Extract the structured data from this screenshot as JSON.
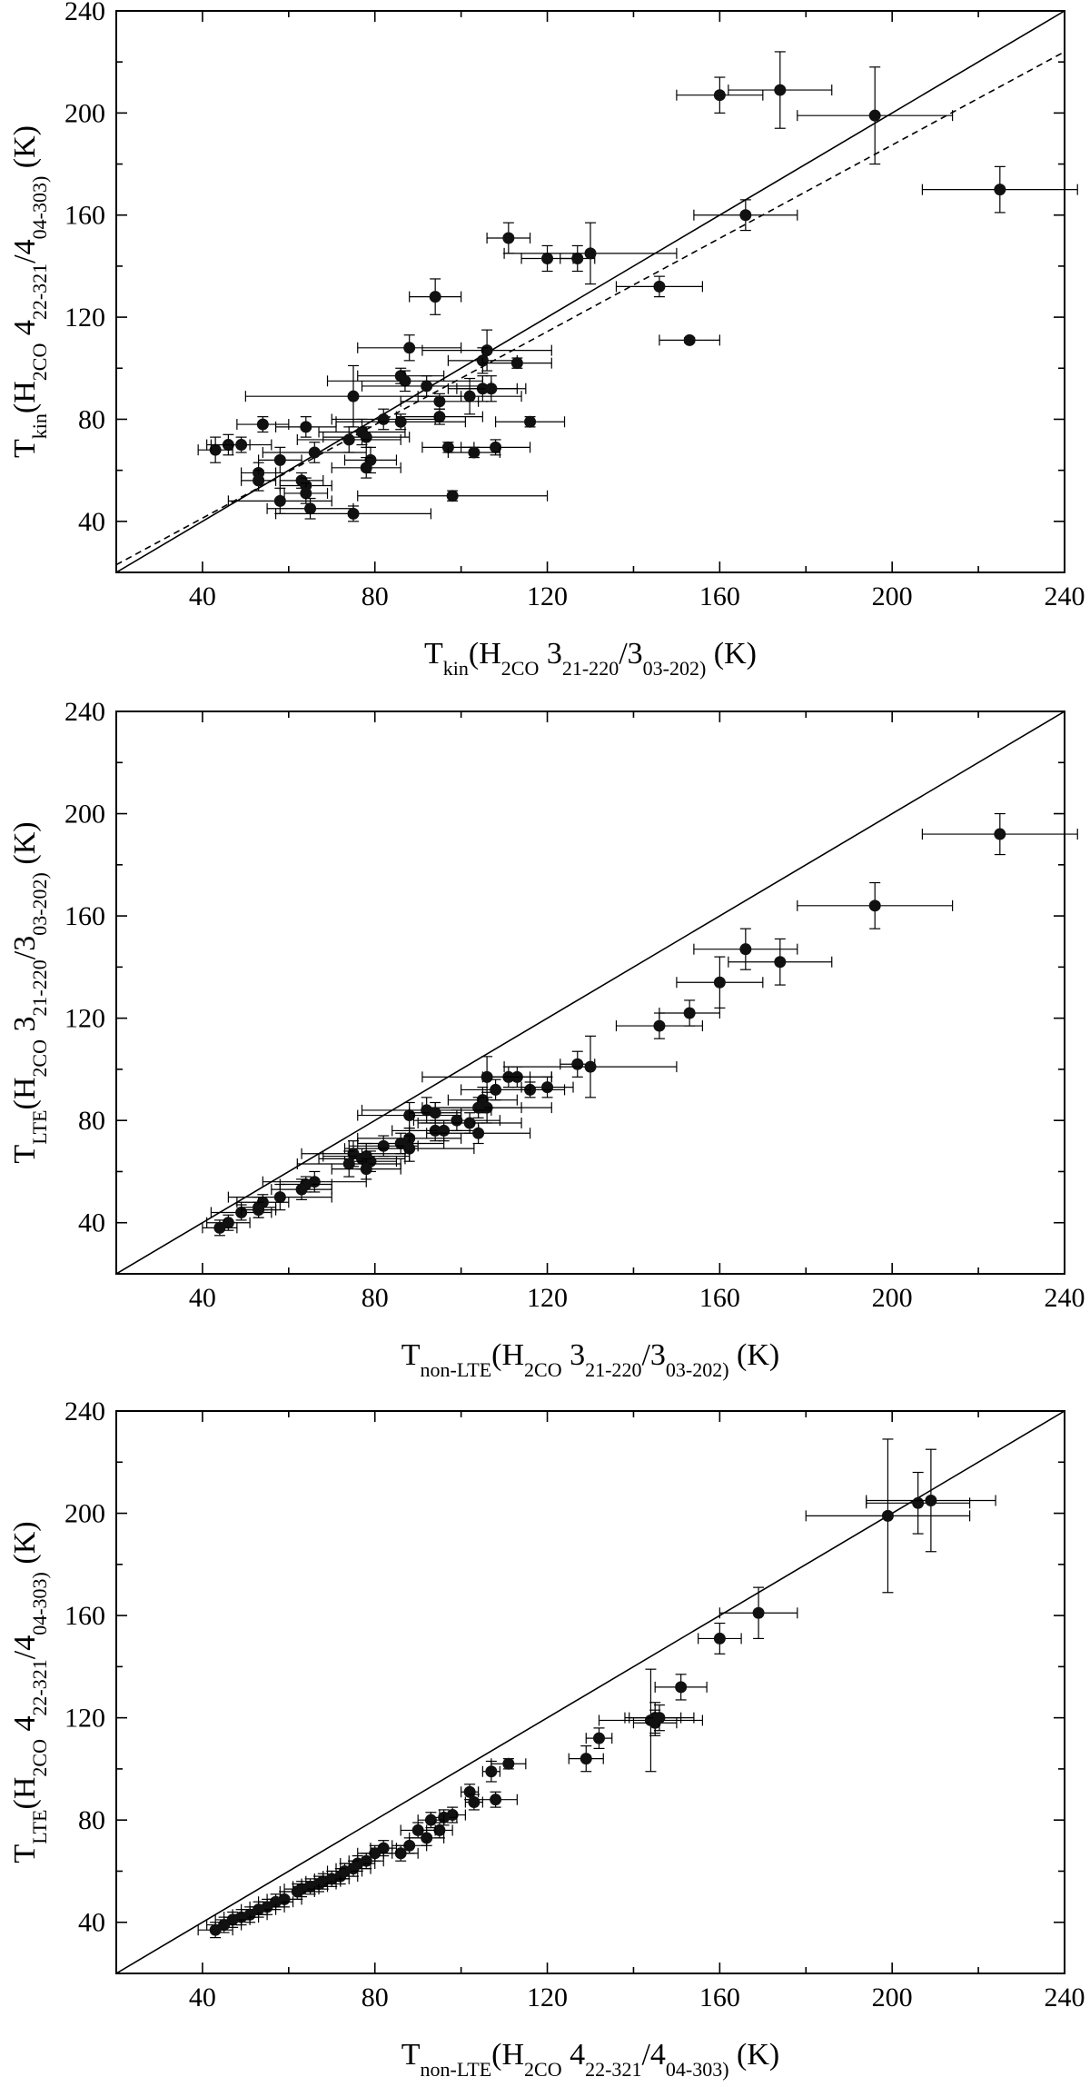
{
  "chart_data": [
    {
      "type": "scatter",
      "xlabel": "T_kin(H_2CO 3_21-2_20/3_03-2_02) (K)",
      "ylabel": "T_kin(H_2CO 4_22-3_21/4_04-3_03) (K)",
      "xlim": [
        20,
        240
      ],
      "ylim": [
        20,
        240
      ],
      "xticks": [
        "40",
        "80",
        "120",
        "160",
        "200",
        "240"
      ],
      "yticks": [
        "40",
        "80",
        "120",
        "160",
        "200",
        "240"
      ],
      "grid": false,
      "lines": [
        {
          "style": "solid",
          "x": [
            20,
            240
          ],
          "y": [
            20,
            240
          ]
        },
        {
          "style": "dashed",
          "x": [
            20,
            240
          ],
          "y": [
            23,
            224
          ]
        }
      ],
      "points": [
        {
          "x": 160,
          "y": 207,
          "xerr": 10,
          "yerr": 7
        },
        {
          "x": 174,
          "y": 209,
          "xerr": 12,
          "yerr": 15
        },
        {
          "x": 196,
          "y": 199,
          "xerr": 18,
          "yerr": 19
        },
        {
          "x": 225,
          "y": 170,
          "xerr": 18,
          "yerr": 9
        },
        {
          "x": 166,
          "y": 160,
          "xerr": 12,
          "yerr": 6
        },
        {
          "x": 111,
          "y": 151,
          "xerr": 5,
          "yerr": 6
        },
        {
          "x": 120,
          "y": 143,
          "xerr": 6,
          "yerr": 5
        },
        {
          "x": 127,
          "y": 143,
          "xerr": 4,
          "yerr": 5
        },
        {
          "x": 130,
          "y": 145,
          "xerr": 20,
          "yerr": 12
        },
        {
          "x": 146,
          "y": 132,
          "xerr": 10,
          "yerr": 4
        },
        {
          "x": 94,
          "y": 128,
          "xerr": 6,
          "yerr": 7
        },
        {
          "x": 153,
          "y": 111,
          "xerr": 7,
          "yerr": 1
        },
        {
          "x": 88,
          "y": 108,
          "xerr": 12,
          "yerr": 5
        },
        {
          "x": 106,
          "y": 107,
          "xerr": 15,
          "yerr": 8
        },
        {
          "x": 105,
          "y": 103,
          "xerr": 8,
          "yerr": 5
        },
        {
          "x": 113,
          "y": 102,
          "xerr": 8,
          "yerr": 2
        },
        {
          "x": 86,
          "y": 97,
          "xerr": 10,
          "yerr": 3
        },
        {
          "x": 87,
          "y": 95,
          "xerr": 18,
          "yerr": 4
        },
        {
          "x": 92,
          "y": 93,
          "xerr": 15,
          "yerr": 4
        },
        {
          "x": 105,
          "y": 92,
          "xerr": 8,
          "yerr": 5
        },
        {
          "x": 107,
          "y": 92,
          "xerr": 8,
          "yerr": 5
        },
        {
          "x": 102,
          "y": 89,
          "xerr": 12,
          "yerr": 7
        },
        {
          "x": 75,
          "y": 89,
          "xerr": 25,
          "yerr": 12
        },
        {
          "x": 95,
          "y": 87,
          "xerr": 9,
          "yerr": 3
        },
        {
          "x": 95,
          "y": 81,
          "xerr": 10,
          "yerr": 3
        },
        {
          "x": 82,
          "y": 80,
          "xerr": 12,
          "yerr": 4
        },
        {
          "x": 86,
          "y": 79,
          "xerr": 15,
          "yerr": 3
        },
        {
          "x": 54,
          "y": 78,
          "xerr": 6,
          "yerr": 3
        },
        {
          "x": 64,
          "y": 77,
          "xerr": 7,
          "yerr": 4
        },
        {
          "x": 116,
          "y": 79,
          "xerr": 8,
          "yerr": 2
        },
        {
          "x": 77,
          "y": 75,
          "xerr": 10,
          "yerr": 5
        },
        {
          "x": 78,
          "y": 73,
          "xerr": 10,
          "yerr": 4
        },
        {
          "x": 74,
          "y": 72,
          "xerr": 12,
          "yerr": 5
        },
        {
          "x": 46,
          "y": 70,
          "xerr": 5,
          "yerr": 4
        },
        {
          "x": 43,
          "y": 68,
          "xerr": 4,
          "yerr": 5
        },
        {
          "x": 49,
          "y": 70,
          "xerr": 7,
          "yerr": 3
        },
        {
          "x": 97,
          "y": 69,
          "xerr": 6,
          "yerr": 2
        },
        {
          "x": 108,
          "y": 69,
          "xerr": 8,
          "yerr": 3
        },
        {
          "x": 103,
          "y": 67,
          "xerr": 6,
          "yerr": 2
        },
        {
          "x": 66,
          "y": 67,
          "xerr": 12,
          "yerr": 4
        },
        {
          "x": 58,
          "y": 64,
          "xerr": 5,
          "yerr": 5
        },
        {
          "x": 79,
          "y": 64,
          "xerr": 6,
          "yerr": 5
        },
        {
          "x": 78,
          "y": 61,
          "xerr": 8,
          "yerr": 4
        },
        {
          "x": 53,
          "y": 59,
          "xerr": 4,
          "yerr": 4
        },
        {
          "x": 63,
          "y": 56,
          "xerr": 5,
          "yerr": 3
        },
        {
          "x": 53,
          "y": 56,
          "xerr": 4,
          "yerr": 4
        },
        {
          "x": 64,
          "y": 54,
          "xerr": 6,
          "yerr": 3
        },
        {
          "x": 64,
          "y": 51,
          "xerr": 5,
          "yerr": 4
        },
        {
          "x": 98,
          "y": 50,
          "xerr": 22,
          "yerr": 2
        },
        {
          "x": 58,
          "y": 48,
          "xerr": 12,
          "yerr": 5
        },
        {
          "x": 65,
          "y": 45,
          "xerr": 10,
          "yerr": 4
        },
        {
          "x": 75,
          "y": 43,
          "xerr": 18,
          "yerr": 3
        }
      ]
    },
    {
      "type": "scatter",
      "xlabel": "T_non-LTE(H_2CO 3_21-2_20/3_03-2_02) (K)",
      "ylabel": "T_LTE(H_2CO 3_21-2_20/3_03-2_02) (K)",
      "xlim": [
        20,
        240
      ],
      "ylim": [
        20,
        240
      ],
      "xticks": [
        "40",
        "80",
        "120",
        "160",
        "200",
        "240"
      ],
      "yticks": [
        "40",
        "80",
        "120",
        "160",
        "200",
        "240"
      ],
      "grid": false,
      "lines": [
        {
          "style": "solid",
          "x": [
            20,
            240
          ],
          "y": [
            20,
            240
          ]
        }
      ],
      "points": [
        {
          "x": 225,
          "y": 192,
          "xerr": 18,
          "yerr": 8
        },
        {
          "x": 196,
          "y": 164,
          "xerr": 18,
          "yerr": 9
        },
        {
          "x": 166,
          "y": 147,
          "xerr": 12,
          "yerr": 8
        },
        {
          "x": 174,
          "y": 142,
          "xerr": 12,
          "yerr": 9
        },
        {
          "x": 160,
          "y": 134,
          "xerr": 10,
          "yerr": 10
        },
        {
          "x": 153,
          "y": 122,
          "xerr": 7,
          "yerr": 5
        },
        {
          "x": 146,
          "y": 117,
          "xerr": 10,
          "yerr": 5
        },
        {
          "x": 127,
          "y": 102,
          "xerr": 4,
          "yerr": 5
        },
        {
          "x": 130,
          "y": 101,
          "xerr": 20,
          "yerr": 12
        },
        {
          "x": 111,
          "y": 97,
          "xerr": 5,
          "yerr": 4
        },
        {
          "x": 113,
          "y": 97,
          "xerr": 8,
          "yerr": 4
        },
        {
          "x": 106,
          "y": 97,
          "xerr": 15,
          "yerr": 8
        },
        {
          "x": 120,
          "y": 93,
          "xerr": 6,
          "yerr": 4
        },
        {
          "x": 116,
          "y": 92,
          "xerr": 8,
          "yerr": 3
        },
        {
          "x": 108,
          "y": 92,
          "xerr": 8,
          "yerr": 4
        },
        {
          "x": 105,
          "y": 88,
          "xerr": 8,
          "yerr": 5
        },
        {
          "x": 106,
          "y": 85,
          "xerr": 15,
          "yerr": 6
        },
        {
          "x": 104,
          "y": 85,
          "xerr": 10,
          "yerr": 4
        },
        {
          "x": 92,
          "y": 84,
          "xerr": 15,
          "yerr": 5
        },
        {
          "x": 88,
          "y": 82,
          "xerr": 12,
          "yerr": 5
        },
        {
          "x": 94,
          "y": 83,
          "xerr": 6,
          "yerr": 4
        },
        {
          "x": 99,
          "y": 80,
          "xerr": 10,
          "yerr": 4
        },
        {
          "x": 102,
          "y": 79,
          "xerr": 12,
          "yerr": 4
        },
        {
          "x": 94,
          "y": 76,
          "xerr": 10,
          "yerr": 4
        },
        {
          "x": 96,
          "y": 76,
          "xerr": 8,
          "yerr": 4
        },
        {
          "x": 104,
          "y": 75,
          "xerr": 12,
          "yerr": 4
        },
        {
          "x": 88,
          "y": 73,
          "xerr": 12,
          "yerr": 4
        },
        {
          "x": 86,
          "y": 71,
          "xerr": 10,
          "yerr": 4
        },
        {
          "x": 82,
          "y": 70,
          "xerr": 8,
          "yerr": 4
        },
        {
          "x": 88,
          "y": 69,
          "xerr": 15,
          "yerr": 5
        },
        {
          "x": 75,
          "y": 67,
          "xerr": 12,
          "yerr": 5
        },
        {
          "x": 78,
          "y": 66,
          "xerr": 10,
          "yerr": 5
        },
        {
          "x": 77,
          "y": 65,
          "xerr": 10,
          "yerr": 4
        },
        {
          "x": 79,
          "y": 64,
          "xerr": 6,
          "yerr": 4
        },
        {
          "x": 74,
          "y": 63,
          "xerr": 12,
          "yerr": 5
        },
        {
          "x": 78,
          "y": 61,
          "xerr": 8,
          "yerr": 4
        },
        {
          "x": 66,
          "y": 56,
          "xerr": 12,
          "yerr": 4
        },
        {
          "x": 64,
          "y": 55,
          "xerr": 6,
          "yerr": 3
        },
        {
          "x": 63,
          "y": 53,
          "xerr": 7,
          "yerr": 4
        },
        {
          "x": 58,
          "y": 50,
          "xerr": 12,
          "yerr": 5
        },
        {
          "x": 54,
          "y": 48,
          "xerr": 6,
          "yerr": 3
        },
        {
          "x": 53,
          "y": 46,
          "xerr": 4,
          "yerr": 4
        },
        {
          "x": 49,
          "y": 44,
          "xerr": 7,
          "yerr": 3
        },
        {
          "x": 53,
          "y": 45,
          "xerr": 4,
          "yerr": 3
        },
        {
          "x": 46,
          "y": 40,
          "xerr": 5,
          "yerr": 3
        },
        {
          "x": 44,
          "y": 38,
          "xerr": 4,
          "yerr": 3
        }
      ]
    },
    {
      "type": "scatter",
      "xlabel": "T_non-LTE(H_2CO 4_22-3_21/4_04-3_03) (K)",
      "ylabel": "T_LTE(H_2CO 4_22-3_21/4_04-3_03) (K)",
      "xlim": [
        20,
        240
      ],
      "ylim": [
        20,
        240
      ],
      "xticks": [
        "40",
        "80",
        "120",
        "160",
        "200",
        "240"
      ],
      "yticks": [
        "40",
        "80",
        "120",
        "160",
        "200",
        "240"
      ],
      "grid": false,
      "lines": [
        {
          "style": "solid",
          "x": [
            20,
            240
          ],
          "y": [
            20,
            240
          ]
        }
      ],
      "points": [
        {
          "x": 199,
          "y": 199,
          "xerr": 19,
          "yerr": 30
        },
        {
          "x": 206,
          "y": 204,
          "xerr": 12,
          "yerr": 12
        },
        {
          "x": 209,
          "y": 205,
          "xerr": 15,
          "yerr": 20
        },
        {
          "x": 169,
          "y": 161,
          "xerr": 9,
          "yerr": 10
        },
        {
          "x": 160,
          "y": 151,
          "xerr": 5,
          "yerr": 6
        },
        {
          "x": 151,
          "y": 132,
          "xerr": 6,
          "yerr": 5
        },
        {
          "x": 145,
          "y": 120,
          "xerr": 6,
          "yerr": 6
        },
        {
          "x": 144,
          "y": 119,
          "xerr": 12,
          "yerr": 20
        },
        {
          "x": 145,
          "y": 118,
          "xerr": 5,
          "yerr": 5
        },
        {
          "x": 146,
          "y": 120,
          "xerr": 8,
          "yerr": 5
        },
        {
          "x": 132,
          "y": 112,
          "xerr": 3,
          "yerr": 4
        },
        {
          "x": 129,
          "y": 104,
          "xerr": 4,
          "yerr": 5
        },
        {
          "x": 111,
          "y": 102,
          "xerr": 4,
          "yerr": 2
        },
        {
          "x": 107,
          "y": 99,
          "xerr": 2,
          "yerr": 4
        },
        {
          "x": 108,
          "y": 88,
          "xerr": 5,
          "yerr": 3
        },
        {
          "x": 102,
          "y": 91,
          "xerr": 2,
          "yerr": 3
        },
        {
          "x": 103,
          "y": 87,
          "xerr": 2,
          "yerr": 3
        },
        {
          "x": 98,
          "y": 82,
          "xerr": 3,
          "yerr": 3
        },
        {
          "x": 96,
          "y": 81,
          "xerr": 3,
          "yerr": 3
        },
        {
          "x": 93,
          "y": 80,
          "xerr": 3,
          "yerr": 3
        },
        {
          "x": 95,
          "y": 76,
          "xerr": 3,
          "yerr": 3
        },
        {
          "x": 90,
          "y": 76,
          "xerr": 4,
          "yerr": 3
        },
        {
          "x": 92,
          "y": 73,
          "xerr": 4,
          "yerr": 3
        },
        {
          "x": 88,
          "y": 70,
          "xerr": 4,
          "yerr": 3
        },
        {
          "x": 86,
          "y": 67,
          "xerr": 4,
          "yerr": 3
        },
        {
          "x": 82,
          "y": 69,
          "xerr": 3,
          "yerr": 3
        },
        {
          "x": 80,
          "y": 67,
          "xerr": 4,
          "yerr": 3
        },
        {
          "x": 78,
          "y": 64,
          "xerr": 4,
          "yerr": 3
        },
        {
          "x": 76,
          "y": 63,
          "xerr": 4,
          "yerr": 3
        },
        {
          "x": 75,
          "y": 61,
          "xerr": 4,
          "yerr": 3
        },
        {
          "x": 73,
          "y": 60,
          "xerr": 4,
          "yerr": 3
        },
        {
          "x": 72,
          "y": 58,
          "xerr": 4,
          "yerr": 3
        },
        {
          "x": 70,
          "y": 57,
          "xerr": 4,
          "yerr": 3
        },
        {
          "x": 68,
          "y": 56,
          "xerr": 4,
          "yerr": 3
        },
        {
          "x": 67,
          "y": 55,
          "xerr": 4,
          "yerr": 3
        },
        {
          "x": 65,
          "y": 54,
          "xerr": 4,
          "yerr": 3
        },
        {
          "x": 63,
          "y": 53,
          "xerr": 4,
          "yerr": 3
        },
        {
          "x": 62,
          "y": 52,
          "xerr": 4,
          "yerr": 3
        },
        {
          "x": 59,
          "y": 49,
          "xerr": 4,
          "yerr": 3
        },
        {
          "x": 57,
          "y": 48,
          "xerr": 4,
          "yerr": 3
        },
        {
          "x": 55,
          "y": 46,
          "xerr": 4,
          "yerr": 3
        },
        {
          "x": 53,
          "y": 45,
          "xerr": 4,
          "yerr": 3
        },
        {
          "x": 51,
          "y": 43,
          "xerr": 4,
          "yerr": 3
        },
        {
          "x": 49,
          "y": 42,
          "xerr": 4,
          "yerr": 3
        },
        {
          "x": 47,
          "y": 41,
          "xerr": 4,
          "yerr": 3
        },
        {
          "x": 45,
          "y": 39,
          "xerr": 4,
          "yerr": 3
        },
        {
          "x": 43,
          "y": 37,
          "xerr": 4,
          "yerr": 3
        }
      ]
    }
  ]
}
